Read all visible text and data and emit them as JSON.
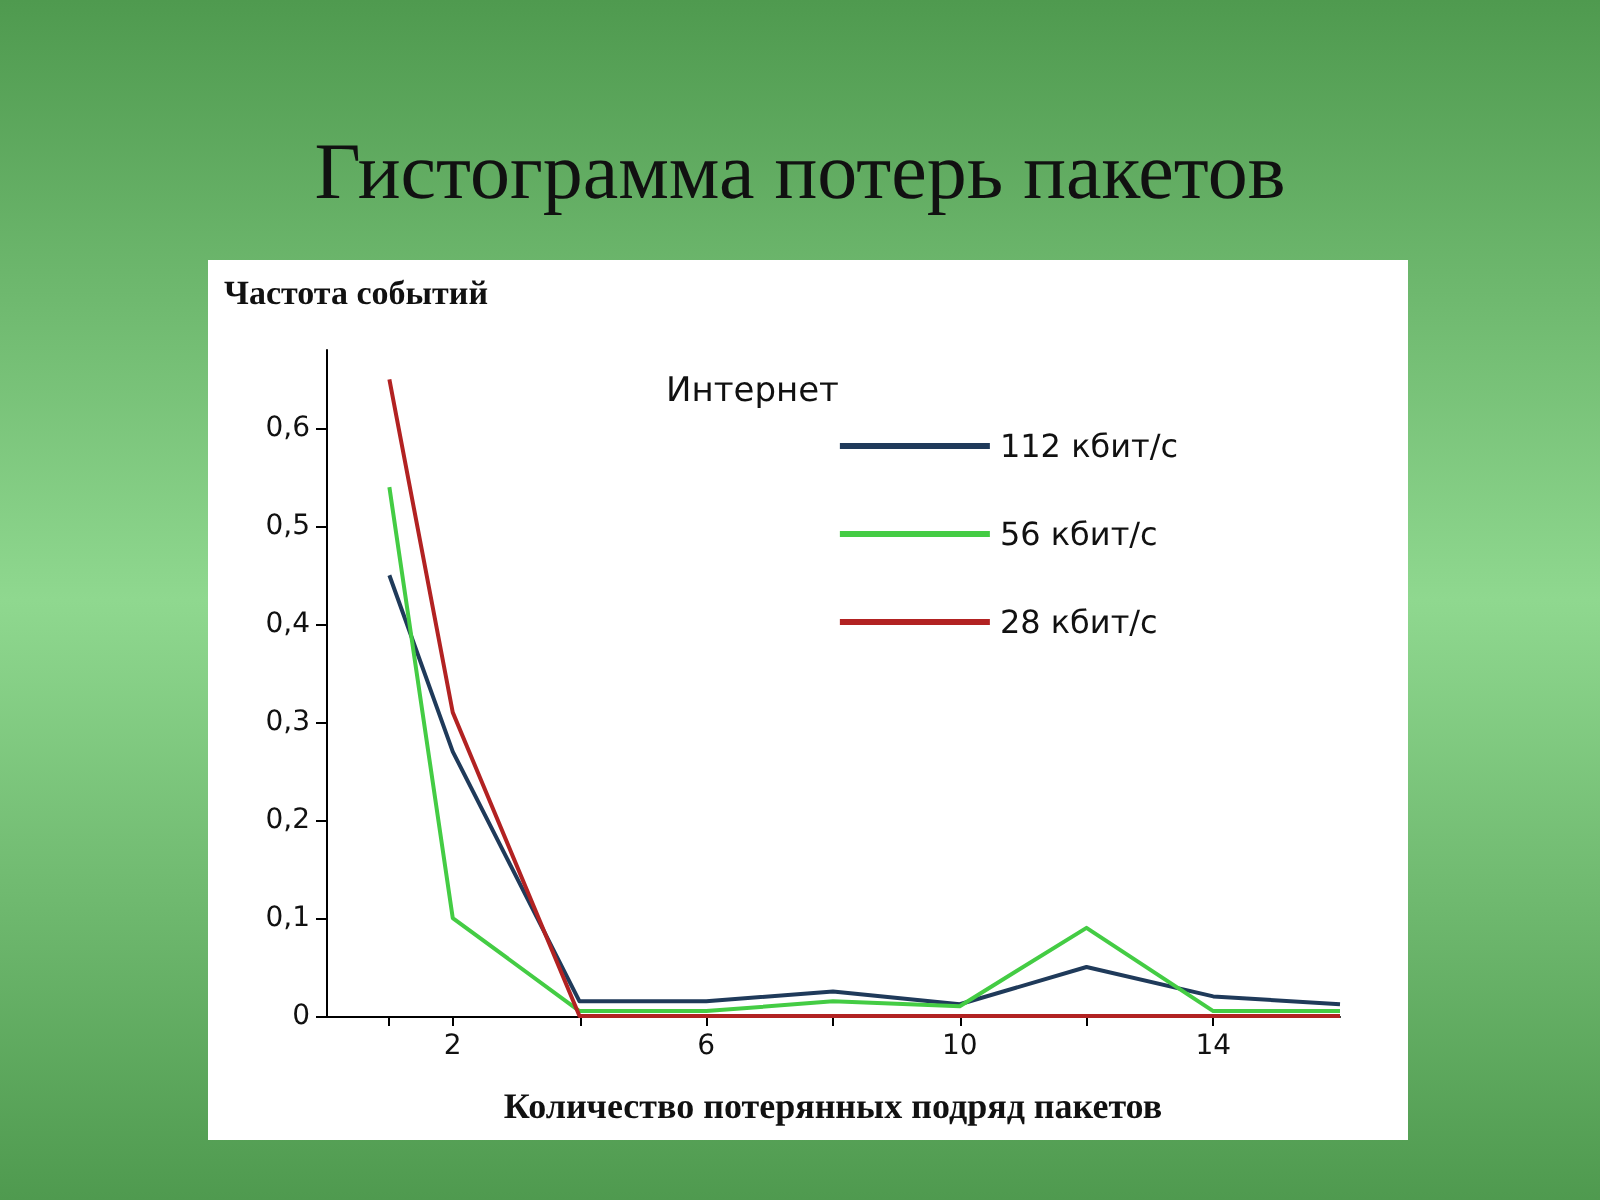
{
  "chart_data": {
    "type": "line",
    "title": "Гистограмма потерь пакетов",
    "ylabel": "Частота событий",
    "xlabel": "Количество потерянных подряд пакетов",
    "legend_title": "Интернет",
    "legend": "top right",
    "grid": false,
    "marker": "none",
    "line_style": "solid",
    "x": [
      1,
      2,
      4,
      6,
      8,
      10,
      12,
      14,
      16
    ],
    "xlim": [
      0,
      16
    ],
    "xticks": [
      {
        "value": 1,
        "label": null
      },
      2,
      {
        "value": 4,
        "label": null
      },
      6,
      {
        "value": 8,
        "label": null
      },
      10,
      {
        "value": 12,
        "label": null
      },
      14
    ],
    "ylim": [
      0,
      0.68
    ],
    "yticks": [
      0,
      {
        "value": 0.1,
        "label": "0,1"
      },
      {
        "value": 0.2,
        "label": "0,2"
      },
      {
        "value": 0.3,
        "label": "0,3"
      },
      {
        "value": 0.4,
        "label": "0,4"
      },
      {
        "value": 0.5,
        "label": "0,5"
      },
      {
        "value": 0.6,
        "label": "0,6"
      }
    ],
    "series": [
      {
        "name": "112 кбит/с",
        "color": "#1f3a5a",
        "values": [
          0.45,
          0.27,
          0.015,
          0.015,
          0.025,
          0.012,
          0.05,
          0.02,
          0.012
        ]
      },
      {
        "name": "56 кбит/с",
        "color": "#44cc44",
        "values": [
          0.54,
          0.1,
          0.005,
          0.005,
          0.015,
          0.01,
          0.09,
          0.005,
          0.005
        ]
      },
      {
        "name": "28 кбит/с",
        "color": "#b22222",
        "values": [
          0.65,
          0.31,
          0,
          0,
          0,
          0,
          0,
          0,
          0
        ]
      }
    ]
  }
}
